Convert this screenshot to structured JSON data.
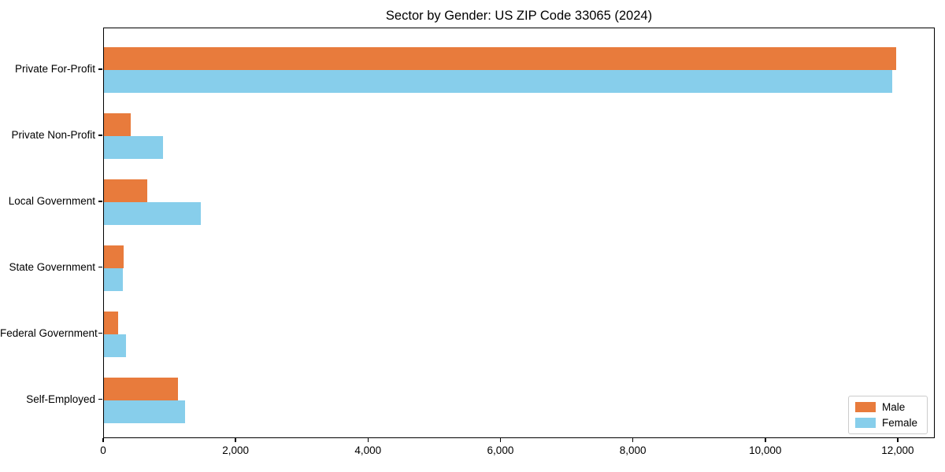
{
  "chart_data": {
    "type": "bar",
    "orientation": "horizontal",
    "title": "Sector by Gender: US ZIP Code 33065 (2024)",
    "categories": [
      "Private For-Profit",
      "Private Non-Profit",
      "Local Government",
      "State Government",
      "Federal Government",
      "Self-Employed"
    ],
    "series": [
      {
        "name": "Male",
        "color": "#e87b3c",
        "values": [
          11960,
          400,
          660,
          300,
          210,
          1120
        ]
      },
      {
        "name": "Female",
        "color": "#87ceeb",
        "values": [
          11900,
          890,
          1460,
          280,
          330,
          1220
        ]
      }
    ],
    "xlim": [
      0,
      12560
    ],
    "xticks": [
      0,
      2000,
      4000,
      6000,
      8000,
      10000,
      12000
    ],
    "xtick_labels": [
      "0",
      "2,000",
      "4,000",
      "6,000",
      "8,000",
      "10,000",
      "12,000"
    ],
    "xlabel": "",
    "ylabel": "",
    "grid": false,
    "legend_position": "lower right"
  }
}
